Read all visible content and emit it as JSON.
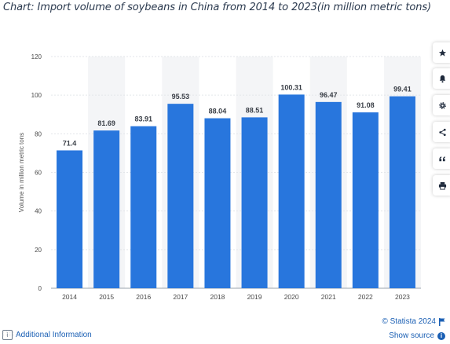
{
  "page_title": "Chart: Import volume of soybeans in China from 2014 to 2023(in million metric tons)",
  "chart_data": {
    "type": "bar",
    "categories": [
      "2014",
      "2015",
      "2016",
      "2017",
      "2018",
      "2019",
      "2020",
      "2021",
      "2022",
      "2023"
    ],
    "values": [
      71.4,
      81.69,
      83.91,
      95.53,
      88.04,
      88.51,
      100.31,
      96.47,
      91.08,
      99.41
    ],
    "value_labels": [
      "71.4",
      "81.69",
      "83.91",
      "95.53",
      "88.04",
      "88.51",
      "100.31",
      "96.47",
      "91.08",
      "99.41"
    ],
    "ylabel": "Volume in million metric tons",
    "ylim": [
      0,
      120
    ],
    "yticks": [
      "0",
      "20",
      "40",
      "60",
      "80",
      "100",
      "120"
    ],
    "grid": true,
    "bar_color": "#2876dd"
  },
  "toolbar": {
    "buttons": [
      {
        "icon": "star-icon"
      },
      {
        "icon": "bell-icon"
      },
      {
        "icon": "gear-icon"
      },
      {
        "icon": "share-icon"
      },
      {
        "icon": "quote-icon"
      },
      {
        "icon": "print-icon"
      }
    ]
  },
  "footer": {
    "additional_info": "Additional Information",
    "copyright": "© Statista 2024",
    "show_source": "Show source",
    "source_icon": "i"
  },
  "colors": {
    "accent": "#1a5fb4",
    "title": "#2b3a4f",
    "axis_text": "#4a4a4a",
    "stripe": "#f4f5f7"
  }
}
